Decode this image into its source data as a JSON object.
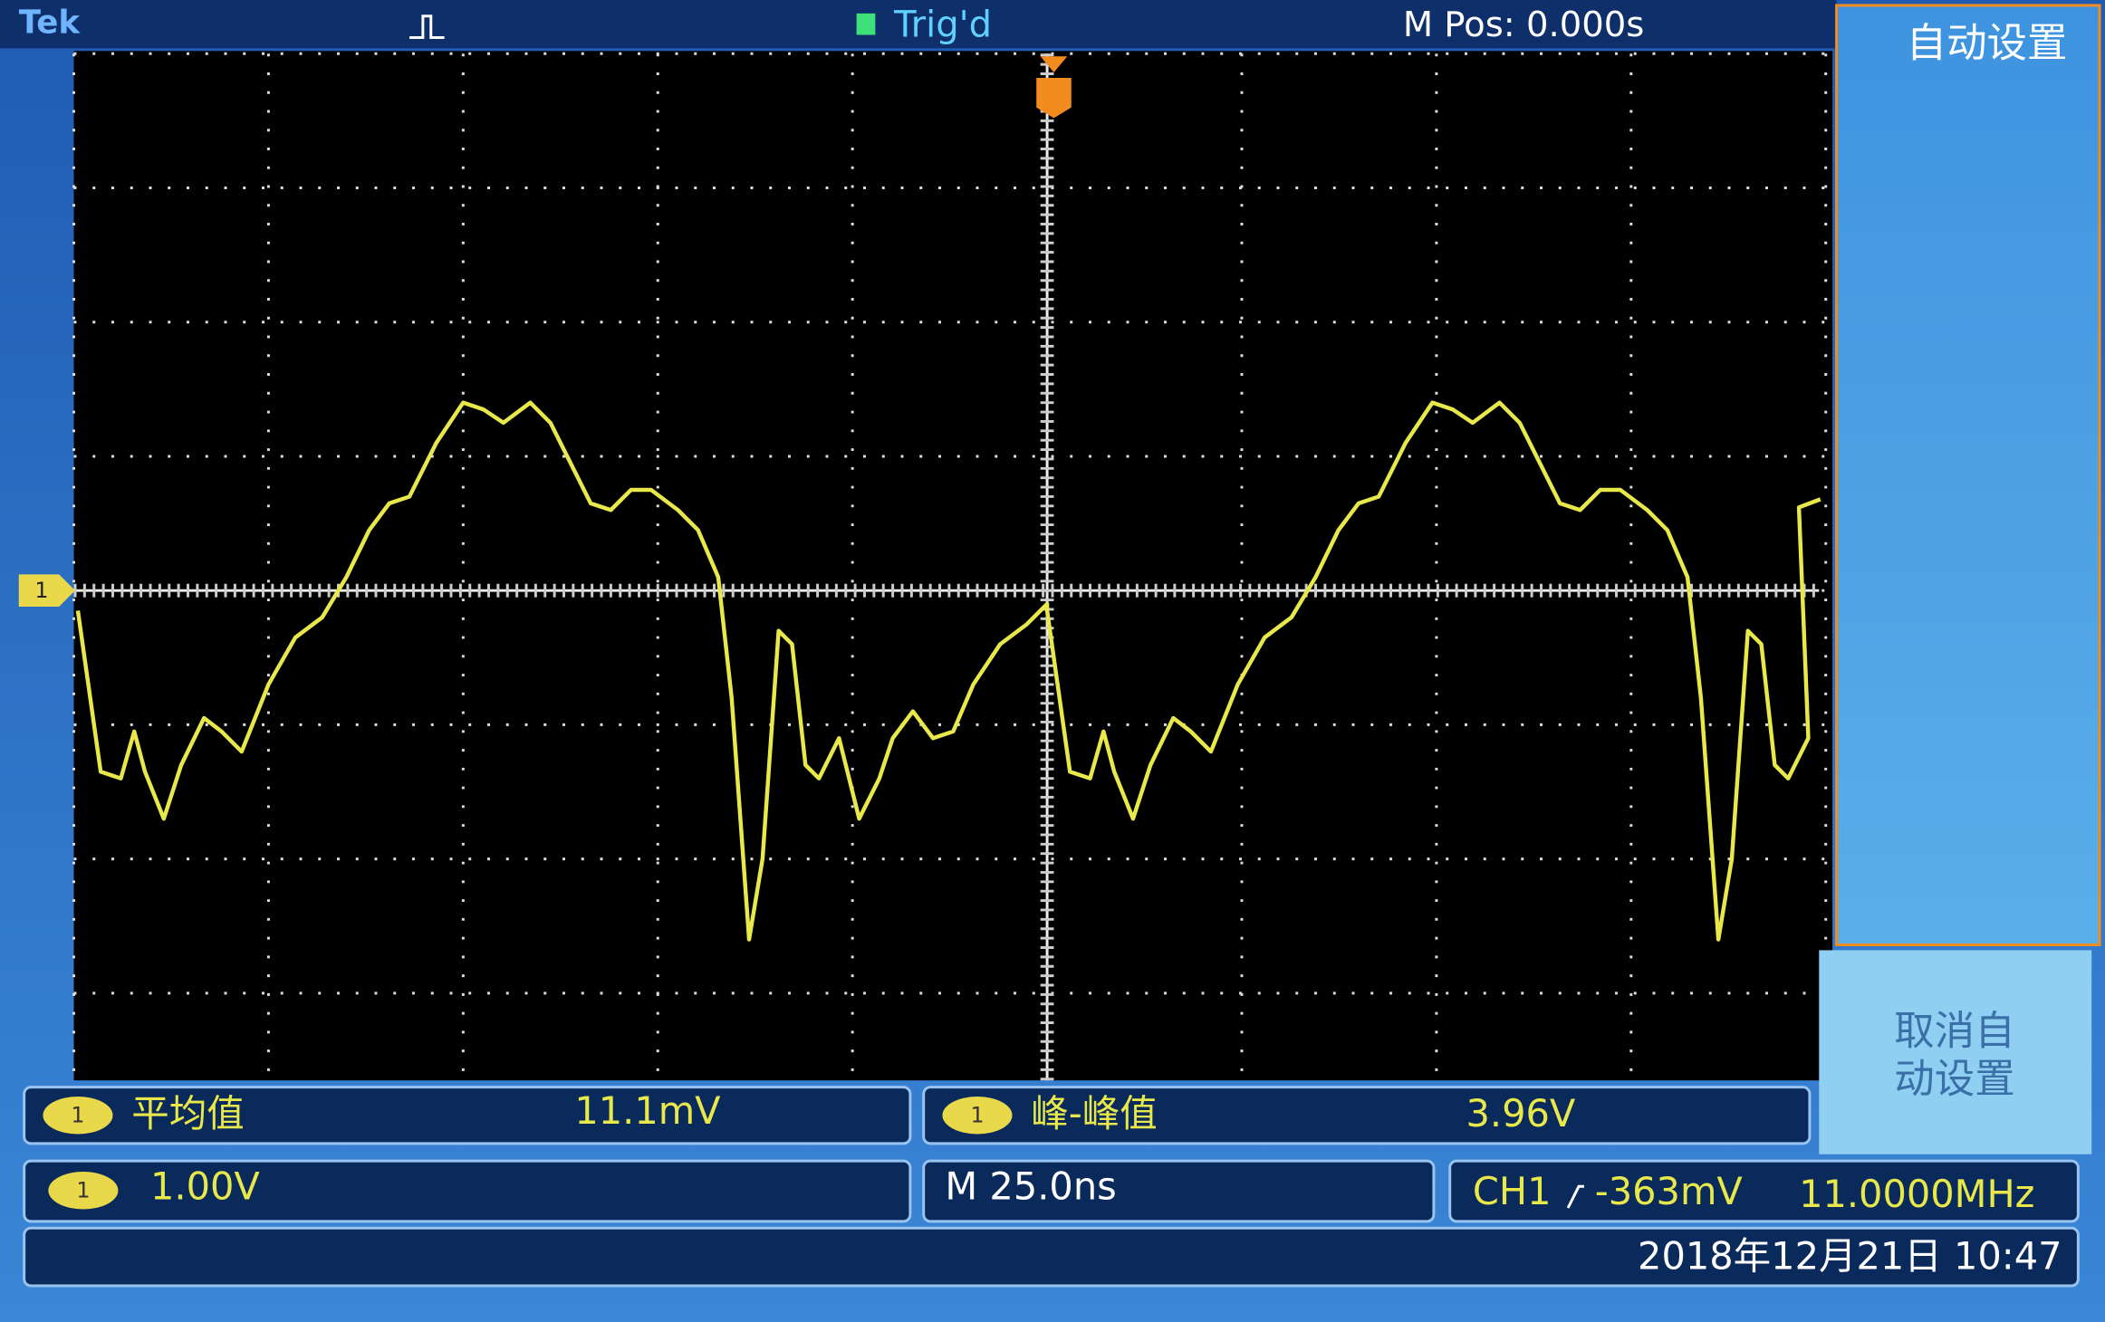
{
  "header": {
    "brand": "Tek",
    "trigger_status": "Trig'd",
    "position": "M Pos: 0.000s"
  },
  "channel_marker": "1",
  "menu": {
    "autoset": "自动设置",
    "cancel_autoset": [
      "取消自",
      "动设置"
    ]
  },
  "measurements": [
    {
      "channel": "1",
      "label": "平均值",
      "value": "11.1mV"
    },
    {
      "channel": "1",
      "label": "峰-峰值",
      "value": "3.96V"
    }
  ],
  "status": {
    "channel": "1",
    "scale": "1.00V",
    "timebase": "M 25.0ns",
    "trigger_source": "CH1",
    "trigger_level": "-363mV",
    "frequency": "11.0000MHz",
    "datetime": "2018年12月21日 10:47"
  }
}
